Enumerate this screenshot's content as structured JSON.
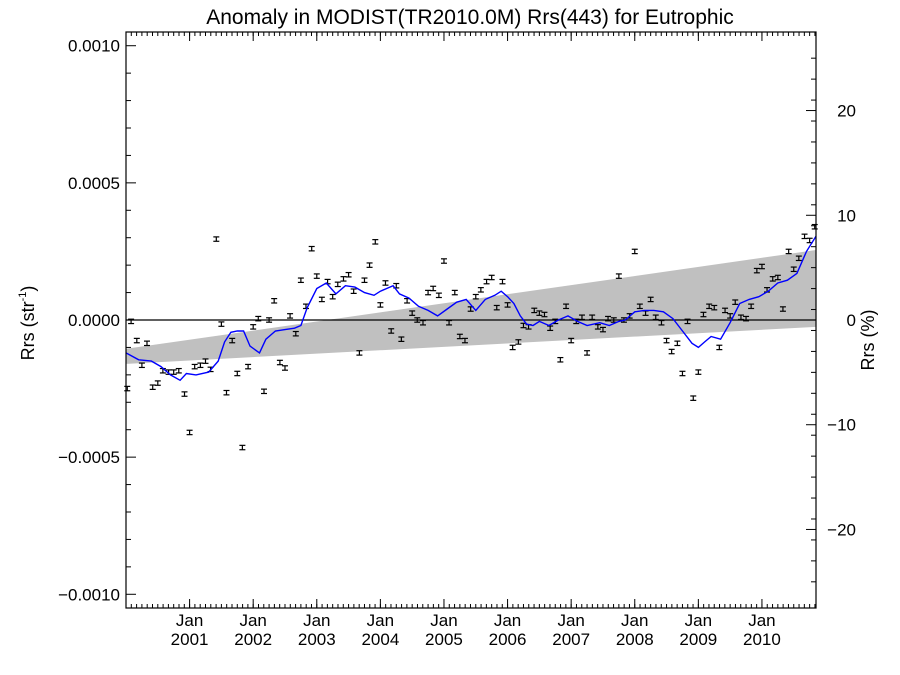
{
  "chart_data": {
    "type": "scatter",
    "title": "Anomaly in MODIST(TR2010.0M) Rrs(443) for Eutrophic",
    "ylabel_main": "Rrs (str",
    "ylabel_sup": "-1",
    "ylabel_close": ")",
    "ylabel_right": "Rrs (%)",
    "xlim": [
      2000.0,
      2010.85
    ],
    "ylim": [
      -0.00105,
      0.00105
    ],
    "ylim_right": [
      -27.5,
      27.5
    ],
    "yticks": [
      {
        "value": 0.001,
        "label": "0.0010"
      },
      {
        "value": 0.0005,
        "label": "0.0005"
      },
      {
        "value": 0.0,
        "label": "0.0000"
      },
      {
        "value": -0.0005,
        "label": "−0.0005"
      },
      {
        "value": -0.001,
        "label": "−0.0010"
      }
    ],
    "yticks_right": [
      {
        "value": 20,
        "label": "20"
      },
      {
        "value": 10,
        "label": "10"
      },
      {
        "value": 0,
        "label": "0"
      },
      {
        "value": -10,
        "label": "−10"
      },
      {
        "value": -20,
        "label": "−20"
      }
    ],
    "xticks": [
      {
        "value": 2001.0,
        "month": "Jan",
        "year": "2001"
      },
      {
        "value": 2002.0,
        "month": "Jan",
        "year": "2002"
      },
      {
        "value": 2003.0,
        "month": "Jan",
        "year": "2003"
      },
      {
        "value": 2004.0,
        "month": "Jan",
        "year": "2004"
      },
      {
        "value": 2005.0,
        "month": "Jan",
        "year": "2005"
      },
      {
        "value": 2006.0,
        "month": "Jan",
        "year": "2006"
      },
      {
        "value": 2007.0,
        "month": "Jan",
        "year": "2007"
      },
      {
        "value": 2008.0,
        "month": "Jan",
        "year": "2008"
      },
      {
        "value": 2009.0,
        "month": "Jan",
        "year": "2009"
      },
      {
        "value": 2010.0,
        "month": "Jan",
        "year": "2010"
      }
    ],
    "trend_band": {
      "x": [
        2000.0,
        2010.85
      ],
      "upper": [
        -0.000105,
        0.000255
      ],
      "lower": [
        -0.00016,
        -2.5e-05
      ],
      "color": "#c0c0c0"
    },
    "zero_line": true,
    "smooth_line": {
      "color": "#0000ff",
      "x": [
        2000.0,
        2000.2,
        2000.4,
        2000.55,
        2000.7,
        2000.85,
        2000.95,
        2001.1,
        2001.3,
        2001.45,
        2001.55,
        2001.65,
        2001.75,
        2001.85,
        2001.95,
        2002.1,
        2002.2,
        2002.35,
        2002.5,
        2002.65,
        2002.75,
        2002.85,
        2003.0,
        2003.15,
        2003.3,
        2003.45,
        2003.6,
        2003.75,
        2003.9,
        2004.0,
        2004.1,
        2004.2,
        2004.3,
        2004.45,
        2004.6,
        2004.75,
        2004.9,
        2005.05,
        2005.2,
        2005.35,
        2005.5,
        2005.65,
        2005.8,
        2005.9,
        2006.0,
        2006.1,
        2006.2,
        2006.3,
        2006.4,
        2006.5,
        2006.65,
        2006.8,
        2006.95,
        2007.1,
        2007.25,
        2007.45,
        2007.6,
        2007.75,
        2007.85,
        2008.0,
        2008.15,
        2008.3,
        2008.45,
        2008.6,
        2008.75,
        2008.9,
        2009.0,
        2009.1,
        2009.2,
        2009.35,
        2009.5,
        2009.65,
        2009.8,
        2009.95,
        2010.1,
        2010.25,
        2010.4,
        2010.55,
        2010.7,
        2010.85
      ],
      "y": [
        -0.00012,
        -0.000145,
        -0.00015,
        -0.00017,
        -0.0002,
        -0.00022,
        -0.000195,
        -0.0002,
        -0.00019,
        -0.00015,
        -8e-05,
        -4.5e-05,
        -4e-05,
        -4e-05,
        -9.5e-05,
        -0.00012,
        -7e-05,
        -4e-05,
        -3.5e-05,
        -3e-05,
        -2e-05,
        4.5e-05,
        0.000115,
        0.000135,
        9.5e-05,
        0.000125,
        0.00012,
        0.0001,
        9e-05,
        0.000105,
        0.000115,
        0.000125,
        9.5e-05,
        8e-05,
        5e-05,
        3.5e-05,
        1.5e-05,
        4e-05,
        6.5e-05,
        7.5e-05,
        3.5e-05,
        7.5e-05,
        9e-05,
        0.000105,
        8.5e-05,
        6e-05,
        1.5e-05,
        -1.5e-05,
        -2e-05,
        -5e-06,
        -2e-05,
        0.0,
        1.5e-05,
        -5e-06,
        -2e-05,
        -1e-05,
        -2e-05,
        -5e-06,
        0.0,
        3e-05,
        3.5e-05,
        3.5e-05,
        3e-05,
        5e-06,
        -4e-05,
        -8.5e-05,
        -0.0001,
        -8e-05,
        -6e-05,
        -7e-05,
        -1e-05,
        6e-05,
        7.5e-05,
        8.5e-05,
        0.000105,
        0.000135,
        0.000145,
        0.00017,
        0.00025,
        0.000305
      ]
    },
    "points": {
      "errbar": 8e-06,
      "x": [
        2000.02,
        2000.08,
        2000.17,
        2000.25,
        2000.33,
        2000.42,
        2000.5,
        2000.58,
        2000.67,
        2000.75,
        2000.83,
        2000.92,
        2001.0,
        2001.08,
        2001.17,
        2001.25,
        2001.33,
        2001.42,
        2001.5,
        2001.58,
        2001.67,
        2001.75,
        2001.83,
        2001.92,
        2002.0,
        2002.08,
        2002.17,
        2002.25,
        2002.33,
        2002.42,
        2002.5,
        2002.58,
        2002.67,
        2002.75,
        2002.83,
        2002.92,
        2003.0,
        2003.08,
        2003.17,
        2003.25,
        2003.33,
        2003.42,
        2003.5,
        2003.58,
        2003.67,
        2003.75,
        2003.83,
        2003.92,
        2004.0,
        2004.08,
        2004.17,
        2004.25,
        2004.33,
        2004.42,
        2004.5,
        2004.58,
        2004.67,
        2004.75,
        2004.83,
        2004.92,
        2005.0,
        2005.08,
        2005.17,
        2005.25,
        2005.33,
        2005.42,
        2005.5,
        2005.58,
        2005.67,
        2005.75,
        2005.83,
        2005.92,
        2006.0,
        2006.08,
        2006.17,
        2006.25,
        2006.33,
        2006.42,
        2006.5,
        2006.58,
        2006.67,
        2006.75,
        2006.83,
        2006.92,
        2007.0,
        2007.08,
        2007.17,
        2007.25,
        2007.33,
        2007.42,
        2007.5,
        2007.58,
        2007.67,
        2007.75,
        2007.83,
        2007.92,
        2008.0,
        2008.08,
        2008.17,
        2008.25,
        2008.33,
        2008.42,
        2008.5,
        2008.58,
        2008.67,
        2008.75,
        2008.83,
        2008.92,
        2009.0,
        2009.08,
        2009.17,
        2009.25,
        2009.33,
        2009.42,
        2009.5,
        2009.58,
        2009.67,
        2009.75,
        2009.83,
        2009.92,
        2010.0,
        2010.08,
        2010.17,
        2010.25,
        2010.33,
        2010.42,
        2010.5,
        2010.58,
        2010.67,
        2010.75,
        2010.83
      ],
      "y": [
        -0.00025,
        -5e-06,
        -7.5e-05,
        -0.000165,
        -8.5e-05,
        -0.000245,
        -0.00023,
        -0.000185,
        -0.00019,
        -0.00019,
        -0.000185,
        -0.00027,
        -0.00041,
        -0.00017,
        -0.000165,
        -0.00015,
        -0.00018,
        0.000295,
        -1.5e-05,
        -0.000265,
        -7.5e-05,
        -0.000195,
        -0.000465,
        -0.00017,
        -2.5e-05,
        5e-06,
        -0.00026,
        0.0,
        7e-05,
        -0.000155,
        -0.000175,
        1.5e-05,
        -5e-05,
        0.000145,
        5e-05,
        0.00026,
        0.00016,
        7.5e-05,
        0.00014,
        8.5e-05,
        0.00013,
        0.00015,
        0.000165,
        0.000105,
        -0.00012,
        0.000145,
        0.0002,
        0.000285,
        5.5e-05,
        0.000135,
        -4e-05,
        0.000125,
        -7e-05,
        7e-05,
        2.5e-05,
        0.0,
        -1e-05,
        0.0001,
        0.000115,
        9e-05,
        0.000215,
        -1e-05,
        0.0001,
        -6e-05,
        -7.5e-05,
        4e-05,
        8.5e-05,
        0.00011,
        0.00014,
        0.000155,
        4.5e-05,
        0.00014,
        5.5e-05,
        -0.0001,
        -8e-05,
        -2e-05,
        -2.5e-05,
        3.5e-05,
        2.5e-05,
        2e-05,
        -3e-05,
        -5e-06,
        -0.000145,
        5e-05,
        -7.5e-05,
        -5e-06,
        1e-05,
        -0.00012,
        1e-05,
        -2.5e-05,
        -3.5e-05,
        5e-06,
        0.0,
        0.00016,
        0.0,
        1.5e-05,
        0.00025,
        5e-05,
        2.5e-05,
        7.5e-05,
        1e-05,
        -1e-05,
        -7.5e-05,
        -0.000115,
        -8.5e-05,
        -0.000195,
        -5e-06,
        -0.000285,
        -0.00019,
        2e-05,
        5e-05,
        4.5e-05,
        -0.0001,
        3.5e-05,
        1.5e-05,
        6.5e-05,
        1e-05,
        5e-06,
        5e-05,
        0.00018,
        0.000195,
        0.00011,
        0.00015,
        0.000155,
        4e-05,
        0.00025,
        0.000185,
        0.000225,
        0.000305,
        0.00029,
        0.00034
      ]
    }
  }
}
